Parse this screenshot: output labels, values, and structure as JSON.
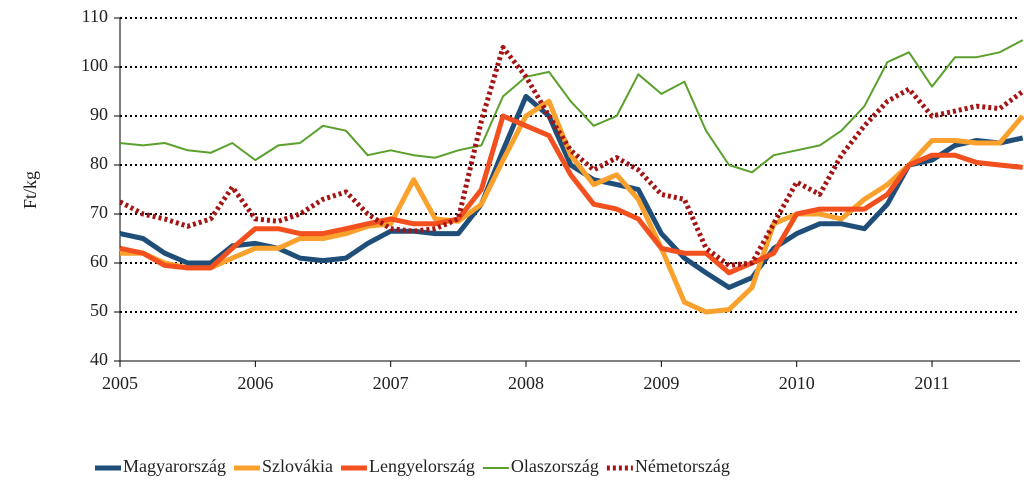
{
  "chart_data": {
    "type": "line",
    "y_label": "Ft/kg",
    "x": [
      2005,
      2005.17,
      2005.33,
      2005.5,
      2005.67,
      2005.83,
      2006,
      2006.17,
      2006.33,
      2006.5,
      2006.67,
      2006.83,
      2007,
      2007.17,
      2007.33,
      2007.5,
      2007.67,
      2007.83,
      2008,
      2008.17,
      2008.33,
      2008.5,
      2008.67,
      2008.83,
      2009,
      2009.17,
      2009.33,
      2009.5,
      2009.67,
      2009.83,
      2010,
      2010.17,
      2010.33,
      2010.5,
      2010.67,
      2010.83,
      2011,
      2011.17,
      2011.33,
      2011.5,
      2011.67
    ],
    "xlim": [
      2005,
      2011.65
    ],
    "xticks": [
      2005,
      2006,
      2007,
      2008,
      2009,
      2010,
      2011
    ],
    "ylim": [
      40,
      110
    ],
    "yticks": [
      40,
      50,
      60,
      70,
      80,
      90,
      100,
      110
    ],
    "grid": true,
    "legend": "bottom",
    "series": [
      {
        "name": "Magyarország",
        "color": "#1f4e79",
        "width": 5,
        "values": [
          66,
          65,
          62,
          60,
          60,
          63.5,
          64,
          63,
          61,
          60.5,
          61,
          64,
          66.5,
          66.5,
          66,
          66,
          72,
          83,
          94,
          90,
          80,
          77,
          76,
          75,
          66,
          61,
          58,
          55,
          57,
          63,
          66,
          68,
          68,
          67,
          72,
          80,
          81,
          84,
          85,
          84.5,
          85.5
        ]
      },
      {
        "name": "Szlovákia",
        "color": "#f9a12c",
        "width": 5,
        "values": [
          62,
          62,
          60,
          59,
          59,
          61,
          63,
          63,
          65,
          65,
          66,
          67.5,
          68,
          77,
          69,
          68.5,
          72,
          81,
          90,
          93,
          82,
          76,
          78,
          73,
          63,
          52,
          50,
          50.5,
          55,
          68,
          70,
          70,
          69,
          73,
          76,
          80,
          85,
          85,
          84.5,
          84.5,
          90
        ]
      },
      {
        "name": "Lengyelország",
        "color": "#f2501e",
        "width": 5,
        "values": [
          63,
          62,
          59.5,
          59,
          59,
          63,
          67,
          67,
          66,
          66,
          67,
          68,
          69,
          68,
          68,
          69,
          75,
          90,
          88,
          86,
          78,
          72,
          71,
          69,
          63,
          62,
          62,
          58,
          60,
          62,
          70,
          71,
          71,
          71,
          74,
          80,
          82,
          82,
          80.5,
          80,
          79.5
        ]
      },
      {
        "name": "Olaszország",
        "color": "#5aa02c",
        "width": 2,
        "values": [
          84.5,
          84,
          84.5,
          83,
          82.5,
          84.5,
          81,
          84,
          84.5,
          88,
          87,
          82,
          83,
          82,
          81.5,
          83,
          84,
          94,
          98,
          99,
          93,
          88,
          90,
          98.5,
          94.5,
          97,
          87,
          80,
          78.5,
          82,
          83,
          84,
          87,
          92,
          101,
          103,
          96,
          102,
          102,
          103,
          105.5
        ]
      },
      {
        "name": "Németország",
        "color": "#a31515",
        "width": 5,
        "style": "dotted",
        "values": [
          72.5,
          70,
          69,
          67.5,
          69,
          75.5,
          69,
          68.5,
          70,
          73,
          74.5,
          70,
          67,
          66.5,
          67,
          69,
          89,
          104,
          98,
          90,
          83,
          79,
          81.5,
          79,
          74,
          73,
          63,
          59.5,
          60,
          68,
          76.5,
          74,
          82,
          88,
          93,
          95.5,
          90,
          91,
          92,
          91.5,
          95
        ]
      }
    ]
  }
}
